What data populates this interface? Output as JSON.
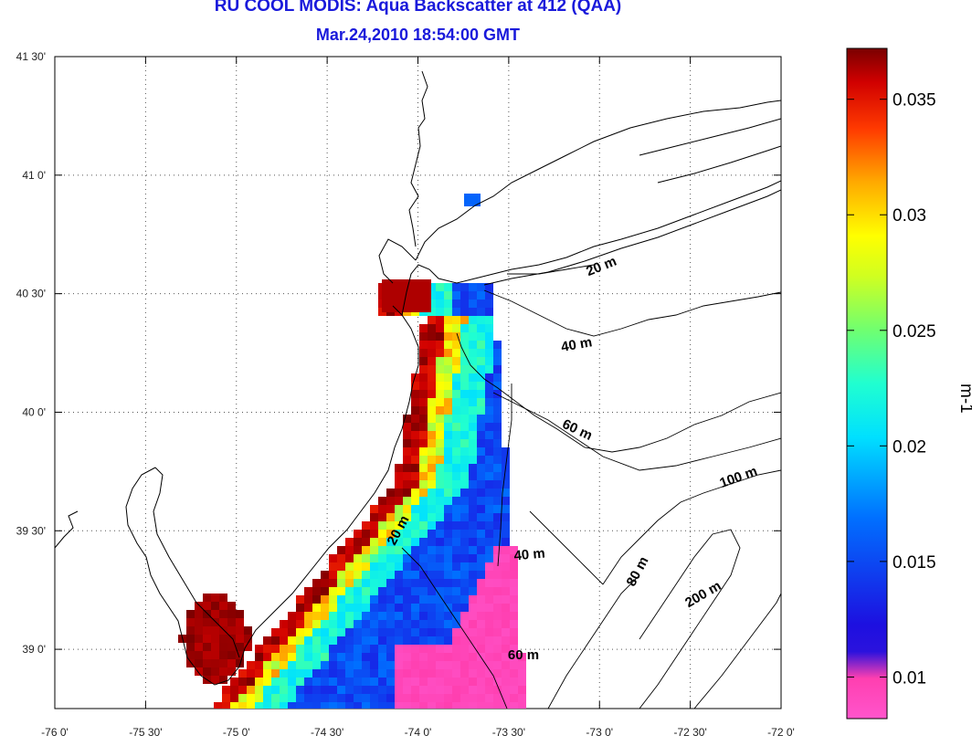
{
  "title": {
    "line1": "RU COOL MODIS: Aqua Backscatter at 412 (QAA)",
    "line2": "Mar.24,2010 18:54:00 GMT"
  },
  "axes": {
    "x_ticks": [
      "-76 0'",
      "-75 30'",
      "-75 0'",
      "-74 30'",
      "-74 0'",
      "-73 30'",
      "-73 0'",
      "-72 30'",
      "-72 0'"
    ],
    "y_ticks": [
      "41 30'",
      "41 0'",
      "40 30'",
      "40 0'",
      "39 30'",
      "39 0'"
    ],
    "x_range_deg": [
      -76.0,
      -72.0
    ],
    "y_range_deg": [
      38.75,
      41.5
    ],
    "grid": "dotted"
  },
  "isobaths": [
    {
      "label": "20 m"
    },
    {
      "label": "40 m"
    },
    {
      "label": "60 m"
    },
    {
      "label": "100 m"
    },
    {
      "label": "20 m"
    },
    {
      "label": "40 m"
    },
    {
      "label": "80 m"
    },
    {
      "label": "200 m"
    },
    {
      "label": "60 m"
    }
  ],
  "colorbar": {
    "unit": "m-1",
    "min": 0.0082,
    "max": 0.0372,
    "ticks": [
      "0.035",
      "0.03",
      "0.025",
      "0.02",
      "0.015",
      "0.01"
    ],
    "tick_values": [
      0.035,
      0.03,
      0.025,
      0.02,
      0.015,
      0.01
    ],
    "colors": [
      "#ff55cc",
      "#ff3fb0",
      "#1d10e0",
      "#0038ff",
      "#00c8ff",
      "#00ffff",
      "#40ff90",
      "#b0ff30",
      "#ffff00",
      "#ffaa00",
      "#ff3a00",
      "#dd0000",
      "#7a0000"
    ]
  }
}
